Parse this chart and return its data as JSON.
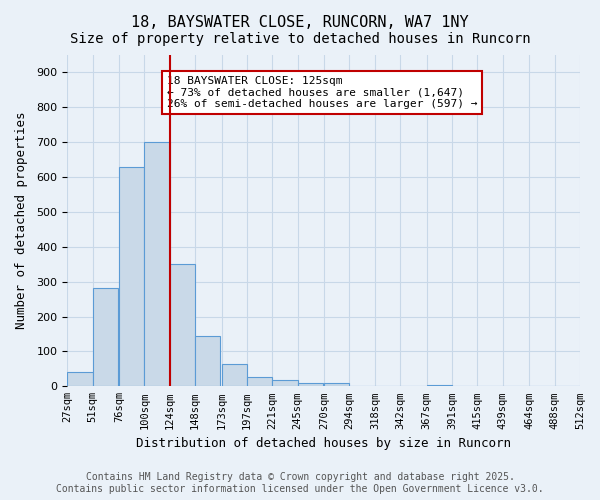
{
  "title_line1": "18, BAYSWATER CLOSE, RUNCORN, WA7 1NY",
  "title_line2": "Size of property relative to detached houses in Runcorn",
  "xlabel": "Distribution of detached houses by size in Runcorn",
  "ylabel": "Number of detached properties",
  "bin_labels": [
    "27sqm",
    "51sqm",
    "76sqm",
    "100sqm",
    "124sqm",
    "148sqm",
    "173sqm",
    "197sqm",
    "221sqm",
    "245sqm",
    "270sqm",
    "294sqm",
    "318sqm",
    "342sqm",
    "367sqm",
    "391sqm",
    "415sqm",
    "439sqm",
    "464sqm",
    "488sqm",
    "512sqm"
  ],
  "bin_edges": [
    27,
    51,
    76,
    100,
    124,
    148,
    173,
    197,
    221,
    245,
    270,
    294,
    318,
    342,
    367,
    391,
    415,
    439,
    464,
    488,
    512
  ],
  "bar_heights": [
    40,
    283,
    630,
    700,
    350,
    145,
    65,
    28,
    18,
    10,
    10,
    0,
    0,
    0,
    5,
    0,
    0,
    0,
    0,
    0
  ],
  "bar_color": "#c9d9e8",
  "bar_edge_color": "#5b9bd5",
  "property_line_x": 124,
  "property_line_color": "#c00000",
  "annotation_text": "18 BAYSWATER CLOSE: 125sqm\n← 73% of detached houses are smaller (1,647)\n26% of semi-detached houses are larger (597) →",
  "annotation_box_color": "#c00000",
  "annotation_text_color": "#000000",
  "annotation_bg_color": "#ffffff",
  "ylim": [
    0,
    950
  ],
  "yticks": [
    0,
    100,
    200,
    300,
    400,
    500,
    600,
    700,
    800,
    900
  ],
  "grid_color": "#c8d8e8",
  "background_color": "#eaf1f8",
  "footer_line1": "Contains HM Land Registry data © Crown copyright and database right 2025.",
  "footer_line2": "Contains public sector information licensed under the Open Government Licence v3.0.",
  "title_fontsize": 11,
  "subtitle_fontsize": 10,
  "label_fontsize": 9,
  "tick_fontsize": 7.5,
  "footer_fontsize": 7
}
